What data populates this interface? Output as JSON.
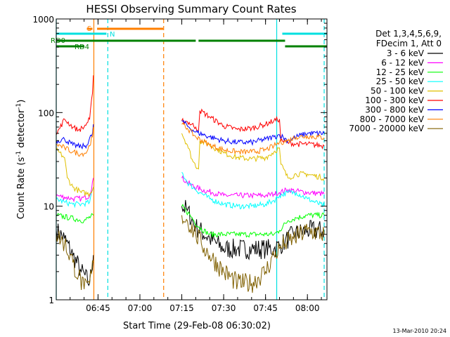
{
  "chart_data": {
    "type": "line",
    "title": "HESSI Observing Summary Count Rates",
    "xlabel": "Start Time (29-Feb-08 06:30:02)",
    "ylabel_main": "Count Rate (s",
    "ylabel_sup1": "-1",
    "ylabel_mid": " detector",
    "ylabel_sup2": "-1",
    "ylabel_end": ")",
    "ylog": true,
    "xlim": [
      "06:30:02",
      "08:07:00"
    ],
    "ylim": [
      1,
      1000
    ],
    "x_ticks": [
      "06:45",
      "07:00",
      "07:15",
      "07:30",
      "07:45",
      "08:00"
    ],
    "y_ticks": [
      "1",
      "10",
      "100",
      "1000"
    ],
    "legend_header": [
      "Det 1,3,4,5,6,9,",
      "FDecim 1, Att 0"
    ],
    "legend_placement": "right",
    "footer_date": "13-Mar-2010 20:24",
    "flags": [
      {
        "label": "S",
        "color": "#ff7f00",
        "segments": [
          [
            "06:41:00",
            "06:43:00"
          ],
          [
            "06:44:40",
            "07:08:20"
          ]
        ]
      },
      {
        "label": "N",
        "color": "#00e0e0",
        "segments": [
          [
            "06:30:02",
            "06:48:00"
          ],
          [
            "07:51:00",
            "08:07:00"
          ]
        ]
      },
      {
        "label": "RD0",
        "color": "#008000",
        "segments": [
          [
            "06:30:02",
            "07:08:20"
          ],
          [
            "07:08:20",
            "07:20:00"
          ],
          [
            "07:21:00",
            "07:52:00"
          ]
        ]
      },
      {
        "label": "RD4",
        "color": "#008000",
        "segments": [
          [
            "06:30:02",
            "06:40:00"
          ],
          [
            "07:52:00",
            "08:07:00"
          ]
        ]
      }
    ],
    "night_lines": {
      "color": "#00e0e0",
      "times": [
        "06:30:02",
        "06:48:30",
        "07:49:00",
        "08:06:00"
      ],
      "dashed": [
        false,
        true,
        false,
        true
      ]
    },
    "saa_lines": {
      "color": "#ff7f00",
      "times": [
        "06:43:30",
        "07:08:30"
      ],
      "dashed": [
        false,
        true
      ]
    },
    "gap": [
      "07:08:30",
      "07:15:00"
    ],
    "series": [
      {
        "name": "3 - 6 keV",
        "color": "#000000",
        "x": [
          "06:30:02",
          "06:33",
          "06:36",
          "06:39",
          "06:42",
          "06:43:20",
          "07:15",
          "07:17",
          "07:20",
          "07:25",
          "07:30",
          "07:35",
          "07:40",
          "07:45",
          "07:48",
          "07:50",
          "07:52",
          "07:55",
          "08:00",
          "08:06"
        ],
        "y": [
          5.5,
          4.5,
          3,
          2,
          1.5,
          3,
          10,
          9,
          6,
          4.5,
          3.5,
          3.5,
          3.5,
          3.5,
          3.5,
          3.8,
          4.2,
          5,
          5.5,
          5.5
        ]
      },
      {
        "name": "6 - 12 keV",
        "color": "#ff00ff",
        "x": [
          "06:30:02",
          "06:33",
          "06:36",
          "06:39",
          "06:42",
          "06:43:20",
          "07:15",
          "07:18",
          "07:22",
          "07:26",
          "07:30",
          "07:35",
          "07:40",
          "07:45",
          "07:48",
          "07:50",
          "07:53",
          "07:56",
          "08:00",
          "08:06"
        ],
        "y": [
          13,
          12.5,
          12,
          12,
          13,
          20,
          20,
          17,
          15,
          14,
          13,
          13,
          13,
          13,
          13.5,
          14,
          15,
          14.5,
          14,
          13.5
        ]
      },
      {
        "name": "12 - 25 keV",
        "color": "#00ff00",
        "x": [
          "06:30:02",
          "06:35",
          "06:40",
          "06:43:20",
          "07:15",
          "07:18",
          "07:21",
          "07:25",
          "07:30",
          "07:35",
          "07:40",
          "07:45",
          "07:48",
          "07:50",
          "07:53",
          "07:56",
          "08:00",
          "08:06"
        ],
        "y": [
          8,
          7.5,
          7,
          8,
          10,
          8,
          6,
          5,
          5,
          5,
          5,
          5,
          5,
          5.5,
          7,
          7.5,
          8,
          8
        ]
      },
      {
        "name": "25 - 50 keV",
        "color": "#00ffff",
        "x": [
          "06:30:02",
          "06:33",
          "06:36",
          "06:39",
          "06:42",
          "06:43:20",
          "07:15",
          "07:17",
          "07:20",
          "07:25",
          "07:30",
          "07:35",
          "07:40",
          "07:45",
          "07:48",
          "07:50",
          "07:53",
          "07:56",
          "08:00",
          "08:06"
        ],
        "y": [
          12,
          11,
          10.5,
          10.5,
          11,
          16,
          23,
          18,
          15,
          12,
          10.5,
          10,
          10,
          10.5,
          11.5,
          13,
          14,
          14,
          12,
          10
        ]
      },
      {
        "name": "50 - 100 keV",
        "color": "#e0c000",
        "x": [
          "06:30:02",
          "06:33",
          "06:34",
          "06:36",
          "06:39",
          "06:42",
          "06:43:20",
          "07:15",
          "07:17",
          "07:19",
          "07:21",
          "07:21:30",
          "07:25",
          "07:30",
          "07:35",
          "07:40",
          "07:45",
          "07:48",
          "07:50",
          "07:50:30",
          "07:53",
          "07:56",
          "08:00",
          "08:06"
        ],
        "y": [
          40,
          33,
          20,
          16,
          14,
          13.5,
          16,
          60,
          45,
          30,
          25,
          50,
          45,
          37,
          33,
          32,
          33,
          38,
          42,
          28,
          20,
          22,
          22,
          20
        ]
      },
      {
        "name": "100 - 300 keV",
        "color": "#ff0000",
        "x": [
          "06:30:02",
          "06:33",
          "06:36",
          "06:38",
          "06:40",
          "06:42",
          "06:43",
          "06:43:20",
          "07:15",
          "07:17",
          "07:20",
          "07:21",
          "07:21:30",
          "07:25",
          "07:30",
          "07:35",
          "07:40",
          "07:45",
          "07:48",
          "07:50",
          "07:50:30",
          "07:53",
          "07:56",
          "08:00",
          "08:06"
        ],
        "y": [
          58,
          85,
          70,
          65,
          70,
          85,
          160,
          250,
          82,
          80,
          70,
          65,
          105,
          90,
          72,
          66,
          68,
          75,
          82,
          85,
          50,
          48,
          46,
          46,
          44
        ]
      },
      {
        "name": "300 - 800 keV",
        "color": "#0000ff",
        "x": [
          "06:30:02",
          "06:33",
          "06:36",
          "06:39",
          "06:41",
          "06:43",
          "06:43:20",
          "07:15",
          "07:17",
          "07:20",
          "07:25",
          "07:30",
          "07:35",
          "07:40",
          "07:45",
          "07:48",
          "07:50",
          "07:53",
          "07:56",
          "08:00",
          "08:06"
        ],
        "y": [
          50,
          52,
          45,
          43,
          45,
          60,
          75,
          82,
          72,
          62,
          55,
          50,
          48,
          48,
          52,
          55,
          58,
          50,
          55,
          60,
          60
        ]
      },
      {
        "name": "800 - 7000 keV",
        "color": "#ff7f00",
        "x": [
          "06:30:02",
          "06:33",
          "06:36",
          "06:39",
          "06:41",
          "06:43",
          "06:43:20",
          "07:15",
          "07:17",
          "07:20",
          "07:25",
          "07:30",
          "07:35",
          "07:40",
          "07:45",
          "07:48",
          "07:50",
          "07:53",
          "07:56",
          "08:00",
          "08:06"
        ],
        "y": [
          46,
          42,
          38,
          36,
          38,
          55,
          70,
          75,
          68,
          55,
          45,
          40,
          38,
          38,
          40,
          44,
          48,
          50,
          55,
          56,
          54
        ]
      },
      {
        "name": "7000 - 20000 keV",
        "color": "#806000",
        "x": [
          "06:30:02",
          "06:33",
          "06:36",
          "06:38",
          "06:40",
          "06:42",
          "06:43:20",
          "07:15",
          "07:17",
          "07:20",
          "07:22",
          "07:25",
          "07:30",
          "07:35",
          "07:40",
          "07:45",
          "07:48",
          "07:50",
          "07:52",
          "07:55",
          "08:00",
          "08:06"
        ],
        "y": [
          5,
          4,
          2.5,
          1.8,
          1.3,
          1.5,
          2.5,
          8,
          7,
          5,
          4,
          3,
          2,
          1.5,
          1.5,
          2,
          3,
          3.5,
          4,
          4.5,
          5.5,
          5
        ]
      }
    ]
  }
}
